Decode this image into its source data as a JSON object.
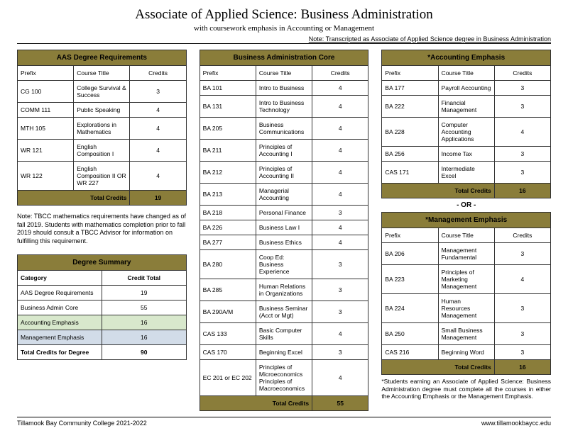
{
  "title": "Associate of Applied Science: Business Administration",
  "subtitle": "with coursework emphasis in Accounting or Management",
  "note_top": "Note: Transcripted as Associate of Applied Science degree in Business Administration",
  "headers": {
    "prefix": "Prefix",
    "course": "Course Title",
    "credits": "Credits"
  },
  "aas": {
    "title": "AAS Degree Requirements",
    "rows": [
      {
        "p": "CG 100",
        "t": "College Survival & Success",
        "c": "3"
      },
      {
        "p": "COMM 111",
        "t": "Public Speaking",
        "c": "4"
      },
      {
        "p": "MTH 105",
        "t": "Explorations in Mathematics",
        "c": "4"
      },
      {
        "p": "WR 121",
        "t": "English Composition I",
        "c": "4"
      },
      {
        "p": "WR 122",
        "t": "English Composition II OR WR 227",
        "c": "4"
      }
    ],
    "total_label": "Total Credits",
    "total": "19",
    "note": "Note: TBCC mathematics requirements have changed as of fall 2019. Students with mathematics completion prior to fall 2019 should consult a TBCC Advisor for information on fulfilling this requirement."
  },
  "summary": {
    "title": "Degree Summary",
    "cat_h": "Category",
    "cred_h": "Credit Total",
    "rows": [
      {
        "cat": "AAS Degree Requirements",
        "c": "19",
        "cls": ""
      },
      {
        "cat": "Business Admin Core",
        "c": "55",
        "cls": ""
      },
      {
        "cat": "Accounting Emphasis",
        "c": "16",
        "cls": "row-acct"
      },
      {
        "cat": "Management Emphasis",
        "c": "16",
        "cls": "row-mgmt"
      },
      {
        "cat": "Total Credits for Degree",
        "c": "90",
        "cls": "row-total"
      }
    ]
  },
  "core": {
    "title": "Business Administration Core",
    "rows": [
      {
        "p": "BA 101",
        "t": "Intro to Business",
        "c": "4"
      },
      {
        "p": "BA 131",
        "t": "Intro to Business Technology",
        "c": "4"
      },
      {
        "p": "BA 205",
        "t": "Business Communications",
        "c": "4"
      },
      {
        "p": "BA 211",
        "t": "Principles of Accounting I",
        "c": "4"
      },
      {
        "p": "BA 212",
        "t": "Principles of Accounting II",
        "c": "4"
      },
      {
        "p": "BA 213",
        "t": "Managerial Accounting",
        "c": "4"
      },
      {
        "p": "BA 218",
        "t": "Personal Finance",
        "c": "3"
      },
      {
        "p": "BA 226",
        "t": "Business Law I",
        "c": "4"
      },
      {
        "p": "BA 277",
        "t": "Business Ethics",
        "c": "4"
      },
      {
        "p": "BA 280",
        "t": "Coop Ed: Business Experience",
        "c": "3"
      },
      {
        "p": "BA 285",
        "t": "Human Relations in Organizations",
        "c": "3"
      },
      {
        "p": "BA 290A/M",
        "t": "Business Seminar (Acct or Mgt)",
        "c": "3"
      },
      {
        "p": "CAS 133",
        "t": "Basic Computer Skills",
        "c": "4"
      },
      {
        "p": "CAS 170",
        "t": "Beginning Excel",
        "c": "3"
      },
      {
        "p": "EC 201 or EC 202",
        "t": "Principles of Microeconomics Principles of Macroeconomics",
        "c": "4"
      }
    ],
    "total_label": "Total Credits",
    "total": "55"
  },
  "acct": {
    "title": "*Accounting Emphasis",
    "rows": [
      {
        "p": "BA 177",
        "t": "Payroll Accounting",
        "c": "3"
      },
      {
        "p": "BA 222",
        "t": "Financial Management",
        "c": "3"
      },
      {
        "p": "BA 228",
        "t": "Computer Accounting Applications",
        "c": "4"
      },
      {
        "p": "BA 256",
        "t": "Income Tax",
        "c": "3"
      },
      {
        "p": "CAS 171",
        "t": "Intermediate Excel",
        "c": "3"
      }
    ],
    "total_label": "Total Credits",
    "total": "16"
  },
  "or_sep": "- OR -",
  "mgmt": {
    "title": "*Management Emphasis",
    "rows": [
      {
        "p": "BA 206",
        "t": "Management Fundamental",
        "c": "3"
      },
      {
        "p": "BA 223",
        "t": "Principles of Marketing Management",
        "c": "4"
      },
      {
        "p": "BA 224",
        "t": "Human Resources Management",
        "c": "3"
      },
      {
        "p": "BA 250",
        "t": "Small Business Management",
        "c": "3"
      },
      {
        "p": "CAS 216",
        "t": "Beginning Word",
        "c": "3"
      }
    ],
    "total_label": "Total Credits",
    "total": "16",
    "footnote": "*Students earning an Associate of Applied Science: Business Administration degree must complete all the courses in either the Accounting Emphasis or the Management Emphasis."
  },
  "footer": {
    "left": "Tillamook Bay Community College 2021-2022",
    "right": "www.tillamookbaycc.edu"
  }
}
